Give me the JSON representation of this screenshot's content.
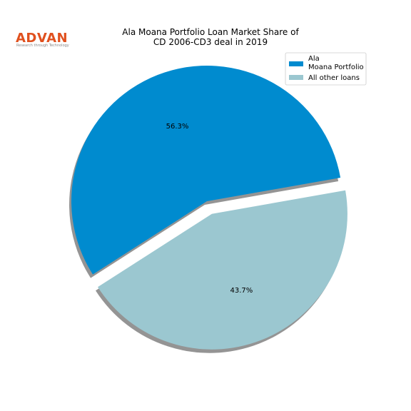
{
  "logo": {
    "name": "ADVAN",
    "tagline": "Research through Technology",
    "color": "#e0501e"
  },
  "chart_data": {
    "type": "pie",
    "title": [
      "Ala Moana Portfolio Loan Market Share of",
      "CD 2006-CD3 deal in 2019"
    ],
    "slices": [
      {
        "label": [
          "Ala",
          "Moana Portfolio"
        ],
        "value": 56.3,
        "pct_label": "56.3%",
        "color": "#008bcf",
        "exploded": false
      },
      {
        "label": [
          "All other loans"
        ],
        "value": 43.7,
        "pct_label": "43.7%",
        "color": "#9bc7d0",
        "exploded": true
      }
    ],
    "shadow": true,
    "legend_position": "top-right"
  }
}
